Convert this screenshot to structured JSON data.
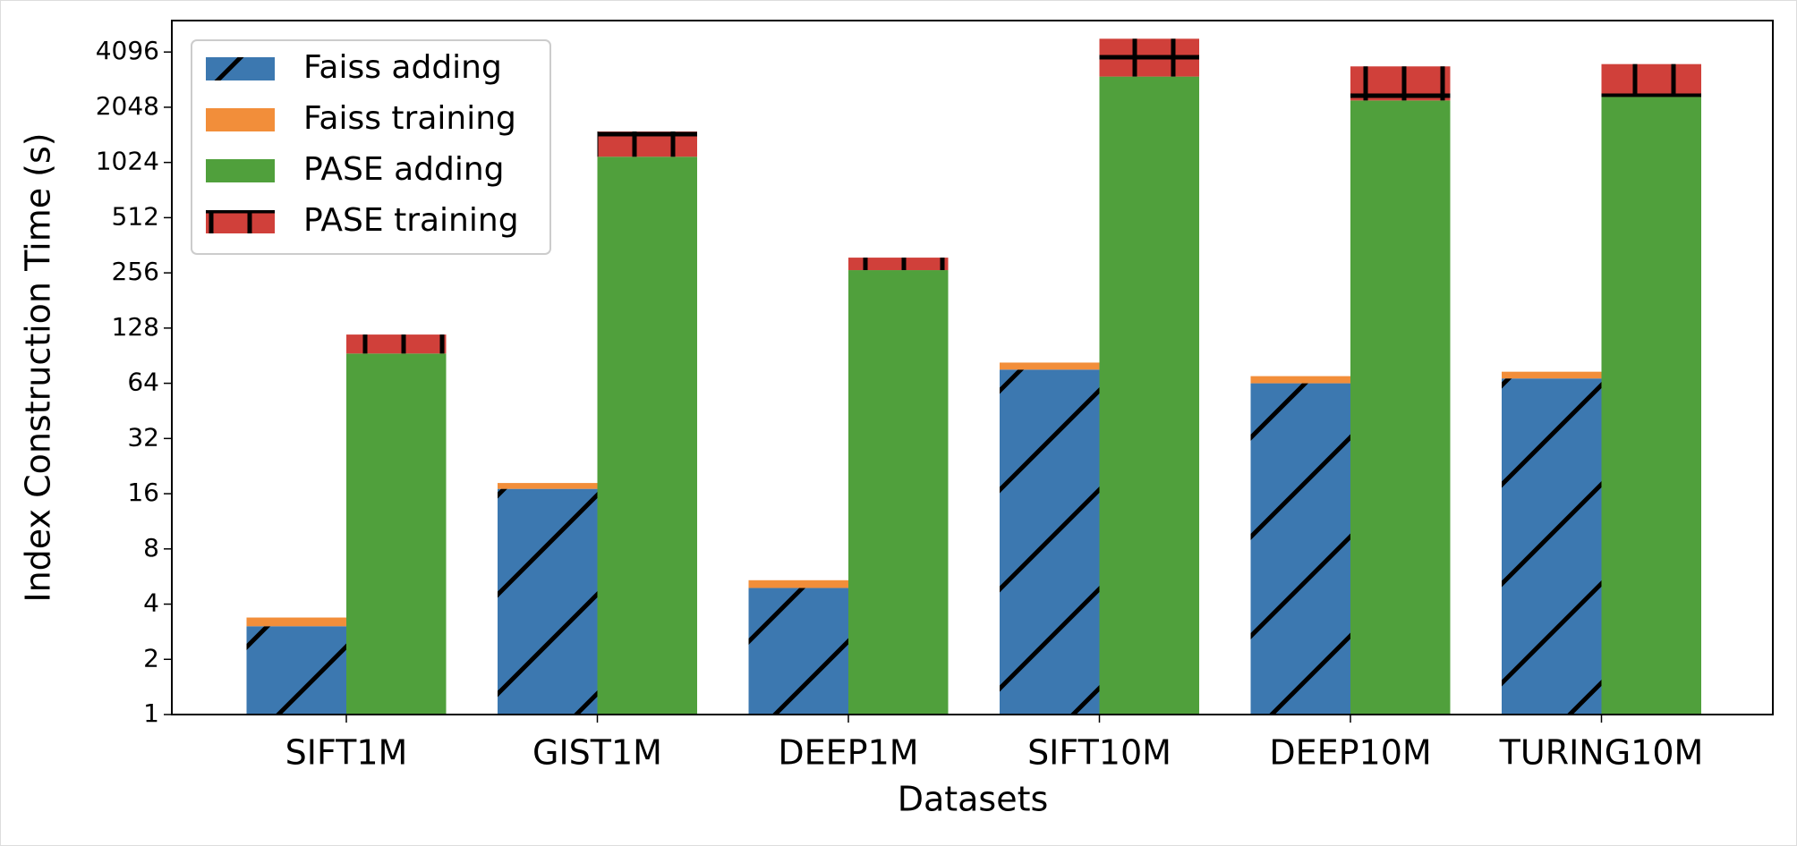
{
  "chart_data": {
    "type": "stacked_bar",
    "x_label": "Datasets",
    "y_label": "Index Construction Time (s)",
    "categories": [
      "SIFT1M",
      "GIST1M",
      "DEEP1M",
      "SIFT10M",
      "DEEP10M",
      "TURING10M"
    ],
    "series": [
      {
        "name": "Faiss adding",
        "color": "#3c78b0",
        "hatch": "/",
        "stack": 0,
        "values": [
          3.03,
          17,
          4.9,
          76,
          64,
          68
        ]
      },
      {
        "name": "Faiss training",
        "color": "#f28e3a",
        "hatch": "",
        "stack": 0,
        "values": [
          0.35,
          1.3,
          0.5,
          7,
          6,
          6
        ]
      },
      {
        "name": "PASE adding",
        "color": "#50a03c",
        "hatch": "",
        "stack": 1,
        "values": [
          93,
          1100,
          265,
          3010,
          2230,
          2330
        ]
      },
      {
        "name": "PASE training",
        "color": "#d0403a",
        "hatch": "+",
        "stack": 1,
        "values": [
          25,
          410,
          45,
          1830,
          1190,
          1190
        ]
      }
    ],
    "log_scale": true,
    "ylim": [
      1,
      6080
    ],
    "yticks": [
      1,
      2,
      4,
      8,
      16,
      32,
      64,
      128,
      256,
      512,
      1024,
      2048,
      4096
    ],
    "legend": "upper left"
  }
}
